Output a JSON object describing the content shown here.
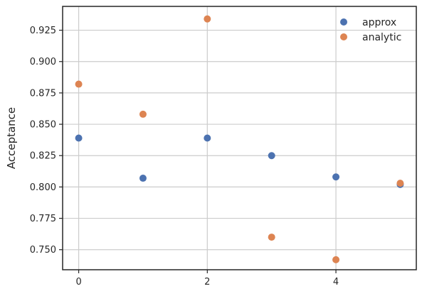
{
  "chart_data": {
    "type": "scatter",
    "title": "",
    "xlabel": "",
    "ylabel": "Acceptance",
    "xlim": [
      -0.25,
      5.25
    ],
    "ylim": [
      0.734,
      0.944
    ],
    "x_ticks": [
      0,
      2,
      4
    ],
    "y_ticks": [
      0.75,
      0.775,
      0.8,
      0.825,
      0.85,
      0.875,
      0.9,
      0.925
    ],
    "grid": true,
    "legend_position": "top-right",
    "series": [
      {
        "name": "approx",
        "color": "#4c72b0",
        "x": [
          0,
          1,
          2,
          3,
          4,
          5
        ],
        "y": [
          0.839,
          0.807,
          0.839,
          0.825,
          0.808,
          0.802
        ]
      },
      {
        "name": "analytic",
        "color": "#dd8452",
        "x": [
          0,
          1,
          2,
          3,
          4,
          5
        ],
        "y": [
          0.882,
          0.858,
          0.934,
          0.76,
          0.742,
          0.803
        ]
      }
    ]
  }
}
